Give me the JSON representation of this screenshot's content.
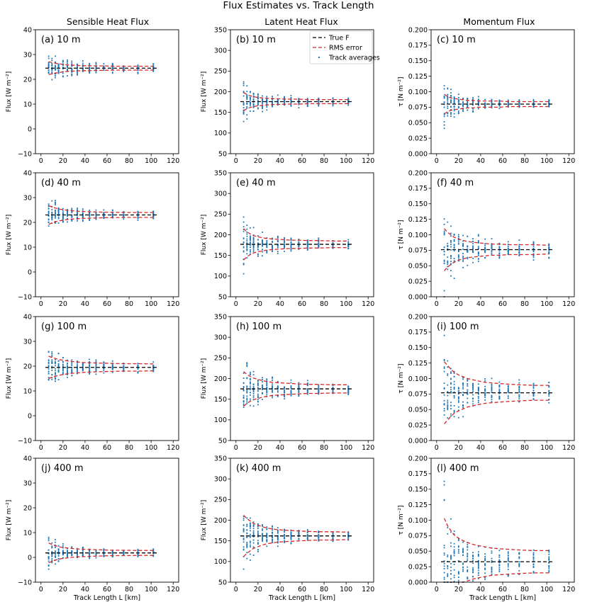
{
  "figure": {
    "title": "Flux Estimates vs. Track Length",
    "column_titles": [
      "Sensible Heat Flux",
      "Latent Heat Flux",
      "Momentum Flux"
    ],
    "xlabel": "Track Length L [km]",
    "legend": {
      "true": "True F",
      "rms": "RMS error",
      "track": "Track averages"
    },
    "colors": {
      "true_line": "#000000",
      "rms": "#d62728",
      "points": "#1f77b4"
    }
  },
  "chart_data": [
    {
      "panel": "(a) 10 m",
      "type": "scatter",
      "ylabel": "Flux [W m⁻²]",
      "xlim": [
        -5,
        125
      ],
      "ylim": [
        -10,
        40
      ],
      "xticks": [
        "0",
        "20",
        "40",
        "60",
        "80",
        "100",
        "120"
      ],
      "yticks": [
        "−10",
        "0",
        "10",
        "20",
        "30",
        "40"
      ],
      "true_value": 24.5,
      "spread": [
        8.5,
        7.5,
        6.5,
        5.5,
        5.0,
        4.5,
        4.0,
        3.6,
        3.3,
        3.0,
        2.8,
        2.6,
        2.5,
        2.4,
        2.3,
        2.3
      ],
      "rms": [
        2.6,
        2.3,
        2.0,
        1.8,
        1.5,
        1.3,
        1.2,
        1.1,
        1.0,
        1.0,
        0.9,
        0.9,
        0.8,
        0.8,
        0.8,
        0.8
      ]
    },
    {
      "panel": "(b) 10 m",
      "type": "scatter",
      "ylabel": "Flux [W m⁻²]",
      "xlim": [
        -5,
        125
      ],
      "ylim": [
        50,
        350
      ],
      "xticks": [
        "0",
        "20",
        "40",
        "60",
        "80",
        "100",
        "120"
      ],
      "yticks": [
        "50",
        "100",
        "150",
        "200",
        "250",
        "300",
        "350"
      ],
      "true_value": 176,
      "spread": [
        70,
        55,
        45,
        38,
        32,
        28,
        25,
        22,
        20,
        19,
        18,
        17,
        16,
        15,
        15,
        14
      ],
      "rms": [
        22,
        17,
        14,
        12,
        10,
        9,
        8,
        7,
        7,
        6,
        6,
        6,
        5,
        5,
        5,
        5
      ],
      "legend": "top-right"
    },
    {
      "panel": "(c) 10 m",
      "type": "scatter",
      "ylabel": "τ [N m⁻²]",
      "xlim": [
        -5,
        125
      ],
      "ylim": [
        0,
        0.2
      ],
      "xticks": [
        "0",
        "20",
        "40",
        "60",
        "80",
        "100",
        "120"
      ],
      "yticks": [
        "0.000",
        "0.025",
        "0.050",
        "0.075",
        "0.100",
        "0.125",
        "0.150",
        "0.175",
        "0.200"
      ],
      "true_value": 0.08,
      "spread": [
        0.055,
        0.04,
        0.032,
        0.026,
        0.022,
        0.019,
        0.017,
        0.015,
        0.014,
        0.013,
        0.012,
        0.011,
        0.01,
        0.01,
        0.01,
        0.009
      ],
      "rms": [
        0.016,
        0.012,
        0.01,
        0.009,
        0.008,
        0.007,
        0.006,
        0.006,
        0.005,
        0.005,
        0.005,
        0.005,
        0.004,
        0.004,
        0.004,
        0.004
      ]
    },
    {
      "panel": "(d) 40 m",
      "type": "scatter",
      "ylabel": "Flux [W m⁻²]",
      "xlim": [
        -5,
        125
      ],
      "ylim": [
        -10,
        40
      ],
      "xticks": [
        "0",
        "20",
        "40",
        "60",
        "80",
        "100",
        "120"
      ],
      "yticks": [
        "−10",
        "0",
        "10",
        "20",
        "30",
        "40"
      ],
      "true_value": 23,
      "spread": [
        9,
        8,
        7,
        6,
        5.5,
        5,
        4.5,
        4,
        3.8,
        3.5,
        3.2,
        3,
        2.8,
        2.6,
        2.5,
        2.4
      ],
      "rms": [
        3.8,
        3.2,
        2.8,
        2.4,
        2.1,
        1.9,
        1.7,
        1.5,
        1.4,
        1.3,
        1.2,
        1.1,
        1.1,
        1.0,
        1.0,
        1.0
      ]
    },
    {
      "panel": "(e) 40 m",
      "type": "scatter",
      "ylabel": "Flux [W m⁻²]",
      "xlim": [
        -5,
        125
      ],
      "ylim": [
        50,
        350
      ],
      "xticks": [
        "0",
        "20",
        "40",
        "60",
        "80",
        "100",
        "120"
      ],
      "yticks": [
        "50",
        "100",
        "150",
        "200",
        "250",
        "300",
        "350"
      ],
      "true_value": 177,
      "spread": [
        90,
        70,
        58,
        48,
        42,
        36,
        32,
        28,
        26,
        24,
        22,
        20,
        19,
        18,
        17,
        16
      ],
      "rms": [
        38,
        30,
        25,
        21,
        18,
        16,
        14,
        13,
        12,
        11,
        10,
        10,
        9,
        9,
        8,
        8
      ]
    },
    {
      "panel": "(f) 40 m",
      "type": "scatter",
      "ylabel": "τ [N m⁻²]",
      "xlim": [
        -5,
        125
      ],
      "ylim": [
        0,
        0.2
      ],
      "xticks": [
        "0",
        "20",
        "40",
        "60",
        "80",
        "100",
        "120"
      ],
      "yticks": [
        "0.000",
        "0.025",
        "0.050",
        "0.075",
        "0.100",
        "0.125",
        "0.150",
        "0.175",
        "0.200"
      ],
      "true_value": 0.076,
      "spread": [
        0.1,
        0.08,
        0.065,
        0.055,
        0.047,
        0.041,
        0.036,
        0.032,
        0.029,
        0.027,
        0.025,
        0.023,
        0.022,
        0.021,
        0.02,
        0.019
      ],
      "rms": [
        0.034,
        0.028,
        0.024,
        0.02,
        0.017,
        0.015,
        0.013,
        0.012,
        0.011,
        0.01,
        0.009,
        0.009,
        0.008,
        0.008,
        0.008,
        0.007
      ]
    },
    {
      "panel": "(g) 100 m",
      "type": "scatter",
      "ylabel": "Flux [W m⁻²]",
      "xlim": [
        -5,
        125
      ],
      "ylim": [
        -10,
        40
      ],
      "xticks": [
        "0",
        "20",
        "40",
        "60",
        "80",
        "100",
        "120"
      ],
      "yticks": [
        "−10",
        "0",
        "10",
        "20",
        "30",
        "40"
      ],
      "true_value": 19.5,
      "spread": [
        12,
        10,
        8.5,
        7.5,
        6.5,
        5.8,
        5.2,
        4.7,
        4.3,
        4,
        3.7,
        3.4,
        3.2,
        3,
        2.9,
        2.8
      ],
      "rms": [
        4.5,
        4,
        3.6,
        3.2,
        2.9,
        2.6,
        2.4,
        2.2,
        2,
        1.9,
        1.8,
        1.7,
        1.6,
        1.5,
        1.5,
        1.4
      ]
    },
    {
      "panel": "(h) 100 m",
      "type": "scatter",
      "ylabel": "Flux [W m⁻²]",
      "xlim": [
        -5,
        125
      ],
      "ylim": [
        50,
        350
      ],
      "xticks": [
        "0",
        "20",
        "40",
        "60",
        "80",
        "100",
        "120"
      ],
      "yticks": [
        "50",
        "100",
        "150",
        "200",
        "250",
        "300",
        "350"
      ],
      "true_value": 175,
      "spread": [
        110,
        85,
        70,
        58,
        50,
        44,
        40,
        36,
        32,
        30,
        28,
        26,
        24,
        22,
        21,
        20
      ],
      "rms": [
        42,
        35,
        30,
        26,
        23,
        20,
        18,
        16,
        15,
        14,
        13,
        12,
        11,
        11,
        10,
        10
      ]
    },
    {
      "panel": "(i) 100 m",
      "type": "scatter",
      "ylabel": "τ [N m⁻²]",
      "xlim": [
        -5,
        125
      ],
      "ylim": [
        0,
        0.2
      ],
      "xticks": [
        "0",
        "20",
        "40",
        "60",
        "80",
        "100",
        "120"
      ],
      "yticks": [
        "0.000",
        "0.025",
        "0.050",
        "0.075",
        "0.100",
        "0.125",
        "0.150",
        "0.175",
        "0.200"
      ],
      "true_value": 0.077,
      "spread": [
        0.11,
        0.09,
        0.075,
        0.063,
        0.054,
        0.047,
        0.042,
        0.038,
        0.034,
        0.031,
        0.029,
        0.027,
        0.025,
        0.024,
        0.023,
        0.022
      ],
      "rms": [
        0.05,
        0.044,
        0.038,
        0.033,
        0.029,
        0.026,
        0.023,
        0.021,
        0.019,
        0.017,
        0.016,
        0.015,
        0.014,
        0.013,
        0.012,
        0.012
      ]
    },
    {
      "panel": "(j) 400 m",
      "type": "scatter",
      "ylabel": "Flux [W m⁻²]",
      "xlim": [
        -5,
        125
      ],
      "ylim": [
        -10,
        40
      ],
      "xticks": [
        "0",
        "20",
        "40",
        "60",
        "80",
        "100",
        "120"
      ],
      "yticks": [
        "−10",
        "0",
        "10",
        "20",
        "30",
        "40"
      ],
      "true_value": 1.8,
      "spread": [
        9,
        7.5,
        6.5,
        5.5,
        4.8,
        4.2,
        3.8,
        3.4,
        3.1,
        2.8,
        2.6,
        2.4,
        2.2,
        2.1,
        2,
        1.9
      ],
      "rms": [
        4,
        3.4,
        2.9,
        2.5,
        2.2,
        2,
        1.8,
        1.6,
        1.5,
        1.4,
        1.3,
        1.2,
        1.1,
        1.1,
        1,
        1
      ]
    },
    {
      "panel": "(k) 400 m",
      "type": "scatter",
      "ylabel": "Flux [W m⁻²]",
      "xlim": [
        -5,
        125
      ],
      "ylim": [
        50,
        350
      ],
      "xticks": [
        "0",
        "20",
        "40",
        "60",
        "80",
        "100",
        "120"
      ],
      "yticks": [
        "50",
        "100",
        "150",
        "200",
        "250",
        "300",
        "350"
      ],
      "true_value": 162,
      "spread": [
        120,
        95,
        78,
        64,
        54,
        46,
        40,
        35,
        31,
        28,
        26,
        24,
        22,
        20,
        19,
        18
      ],
      "rms": [
        50,
        42,
        36,
        30,
        26,
        22,
        19,
        17,
        15,
        14,
        13,
        12,
        11,
        10,
        10,
        9
      ]
    },
    {
      "panel": "(l) 400 m",
      "type": "scatter",
      "ylabel": "τ [N m⁻²]",
      "xlim": [
        -5,
        125
      ],
      "ylim": [
        0,
        0.2
      ],
      "xticks": [
        "0",
        "20",
        "40",
        "60",
        "80",
        "100",
        "120"
      ],
      "yticks": [
        "0.000",
        "0.025",
        "0.050",
        "0.075",
        "0.100",
        "0.125",
        "0.150",
        "0.175",
        "0.200"
      ],
      "true_value": 0.033,
      "spread": [
        0.16,
        0.13,
        0.11,
        0.09,
        0.075,
        0.065,
        0.058,
        0.052,
        0.047,
        0.043,
        0.04,
        0.037,
        0.035,
        0.033,
        0.031,
        0.03
      ],
      "rms": [
        0.07,
        0.058,
        0.05,
        0.043,
        0.038,
        0.034,
        0.031,
        0.028,
        0.026,
        0.024,
        0.022,
        0.021,
        0.02,
        0.019,
        0.018,
        0.018
      ]
    }
  ]
}
